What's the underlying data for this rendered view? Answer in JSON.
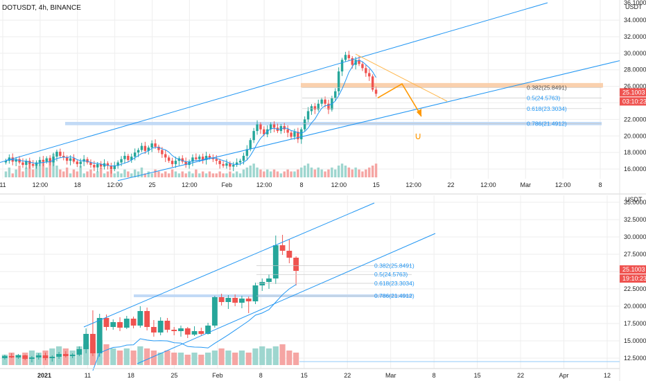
{
  "colors": {
    "up": "#26a69a",
    "down": "#ef5350",
    "vol_up": "#9ed6cf",
    "vol_down": "#f5a5a3",
    "channel": "#2196f3",
    "fib_text": "#2196f3",
    "support": "#bbd6f5",
    "resistance": "#f9c9a0",
    "projection": "#ff9800",
    "price_tag": "#ef5350",
    "grid": "#eeeeee"
  },
  "chart_data": [
    {
      "type": "candlestick",
      "title": "DOTUSDT, 4h, BINANCE",
      "currency": "USDT",
      "ylim": [
        15,
        36.1
      ],
      "y_ticks": [
        "36.1000",
        "34.0000",
        "32.0000",
        "30.0000",
        "28.0000",
        "26.0000",
        "24.0000",
        "22.0000",
        "20.0000",
        "18.0000",
        "16.0000"
      ],
      "x_ticks": [
        "11",
        "12:00",
        "18",
        "12:00",
        "25",
        "12:00",
        "Feb",
        "12:00",
        "8",
        "12:00",
        "15",
        "12:00",
        "22",
        "12:00",
        "Mar",
        "12:00",
        "8"
      ],
      "last_price": "25.1003",
      "countdown": "03:10:23",
      "fib_levels": [
        {
          "label": "0.382(25.8491)",
          "price": 25.8491
        },
        {
          "label": "0.5(24.5763)",
          "price": 24.5763
        },
        {
          "label": "0.618(23.3034)",
          "price": 23.3034
        },
        {
          "label": "0.786(21.4912)",
          "price": 21.4912
        }
      ],
      "resistance_zone": [
        25.8491,
        26.4
      ],
      "support_zone": [
        21.3,
        21.7
      ],
      "close_series": [
        17.0,
        17.4,
        16.9,
        17.2,
        16.8,
        16.5,
        17.0,
        16.6,
        16.4,
        16.8,
        17.1,
        16.9,
        17.3,
        16.8,
        17.5,
        18.1,
        17.6,
        17.4,
        17.0,
        17.3,
        16.9,
        16.6,
        16.9,
        17.2,
        16.8,
        16.5,
        16.2,
        16.6,
        16.3,
        16.7,
        16.4,
        16.0,
        16.4,
        16.8,
        17.2,
        17.6,
        17.1,
        17.5,
        18.0,
        18.3,
        18.8,
        18.2,
        18.6,
        19.1,
        18.7,
        18.3,
        17.8,
        17.4,
        17.0,
        16.6,
        17.0,
        17.3,
        16.9,
        16.5,
        16.9,
        17.4,
        17.2,
        17.5,
        17.1,
        17.6,
        17.4,
        17.2,
        17.0,
        16.6,
        16.4,
        16.7,
        16.3,
        16.5,
        16.8,
        17.0,
        17.6,
        18.4,
        19.5,
        20.6,
        21.4,
        20.8,
        20.2,
        20.8,
        21.4,
        21.0,
        20.6,
        21.2,
        20.8,
        20.4,
        19.9,
        20.5,
        19.6,
        20.8,
        22.0,
        23.0,
        23.6,
        23.2,
        23.9,
        24.4,
        23.9,
        23.2,
        24.6,
        25.4,
        27.8,
        29.2,
        29.8,
        29.4,
        28.6,
        29.2,
        28.7,
        28.2,
        27.6,
        27.2,
        25.6,
        25.1
      ],
      "volume_series": [
        3,
        5,
        2,
        4,
        6,
        3,
        5,
        7,
        4,
        6,
        8,
        9,
        5,
        10,
        12,
        6,
        4,
        3,
        5,
        2,
        4,
        3,
        6,
        2,
        3,
        4,
        2,
        3,
        5,
        2,
        3,
        4,
        2,
        3,
        2,
        4,
        3,
        2,
        4,
        3,
        5,
        2,
        3,
        2,
        4,
        3,
        2,
        3,
        2,
        4,
        3,
        2,
        3,
        2,
        3,
        2,
        4,
        2,
        3,
        2,
        3,
        2,
        2,
        3,
        2,
        2,
        3,
        2,
        3,
        2,
        4,
        5,
        6,
        7,
        5,
        4,
        3,
        4,
        3,
        4,
        3,
        2,
        3,
        4,
        3,
        3,
        4,
        5,
        6,
        7,
        5,
        4,
        5,
        4,
        3,
        4,
        5,
        4,
        6,
        7,
        6,
        5,
        4,
        5,
        4,
        3,
        4,
        5,
        6,
        7
      ]
    },
    {
      "type": "candlestick",
      "currency": "USDT",
      "ylim": [
        11.5,
        36.0
      ],
      "y_ticks": [
        "35.0000",
        "32.5000",
        "30.0000",
        "27.5000",
        "25.0000",
        "22.5000",
        "20.0000",
        "17.5000",
        "15.0000",
        "12.5000"
      ],
      "x_ticks": [
        "2021",
        "11",
        "18",
        "25",
        "Feb",
        "8",
        "15",
        "22",
        "Mar",
        "8",
        "15",
        "22",
        "Apr",
        "12"
      ],
      "last_price": "25.1003",
      "countdown": "19:10:23",
      "fib_levels": [
        {
          "label": "0.382(25.8491)",
          "price": 25.8491
        },
        {
          "label": "0.5(24.5763)",
          "price": 24.5763
        },
        {
          "label": "0.618(23.3034)",
          "price": 23.3034
        },
        {
          "label": "0.786(21.4912)",
          "price": 21.4912
        }
      ],
      "support_zone": [
        21.3,
        21.7
      ],
      "candles": [
        {
          "o": 12.5,
          "h": 13.0,
          "l": 12.3,
          "c": 12.8
        },
        {
          "o": 12.8,
          "h": 13.2,
          "l": 12.5,
          "c": 12.6
        },
        {
          "o": 12.6,
          "h": 13.1,
          "l": 12.4,
          "c": 12.9
        },
        {
          "o": 12.9,
          "h": 13.0,
          "l": 12.2,
          "c": 12.4
        },
        {
          "o": 12.4,
          "h": 12.8,
          "l": 11.9,
          "c": 12.6
        },
        {
          "o": 12.6,
          "h": 13.2,
          "l": 12.3,
          "c": 12.9
        },
        {
          "o": 12.9,
          "h": 13.3,
          "l": 12.2,
          "c": 12.5
        },
        {
          "o": 12.5,
          "h": 12.9,
          "l": 12.0,
          "c": 12.7
        },
        {
          "o": 12.7,
          "h": 13.4,
          "l": 12.4,
          "c": 13.1
        },
        {
          "o": 13.1,
          "h": 13.5,
          "l": 12.6,
          "c": 12.8
        },
        {
          "o": 12.8,
          "h": 13.2,
          "l": 12.5,
          "c": 13.0
        },
        {
          "o": 13.0,
          "h": 14.2,
          "l": 12.8,
          "c": 13.8
        },
        {
          "o": 13.8,
          "h": 16.8,
          "l": 13.2,
          "c": 16.0
        },
        {
          "o": 16.0,
          "h": 19.4,
          "l": 12.8,
          "c": 13.2
        },
        {
          "o": 13.2,
          "h": 18.9,
          "l": 12.7,
          "c": 18.3
        },
        {
          "o": 18.3,
          "h": 18.8,
          "l": 16.5,
          "c": 17.0
        },
        {
          "o": 17.0,
          "h": 18.1,
          "l": 16.6,
          "c": 17.7
        },
        {
          "o": 17.7,
          "h": 18.4,
          "l": 16.4,
          "c": 16.9
        },
        {
          "o": 16.9,
          "h": 18.6,
          "l": 16.7,
          "c": 18.2
        },
        {
          "o": 18.2,
          "h": 18.5,
          "l": 16.8,
          "c": 17.2
        },
        {
          "o": 17.2,
          "h": 20.0,
          "l": 16.9,
          "c": 19.3
        },
        {
          "o": 19.3,
          "h": 19.8,
          "l": 16.5,
          "c": 17.0
        },
        {
          "o": 17.0,
          "h": 18.0,
          "l": 15.6,
          "c": 16.2
        },
        {
          "o": 16.2,
          "h": 18.4,
          "l": 15.8,
          "c": 17.9
        },
        {
          "o": 17.9,
          "h": 18.3,
          "l": 16.2,
          "c": 16.6
        },
        {
          "o": 16.6,
          "h": 17.0,
          "l": 15.8,
          "c": 16.4
        },
        {
          "o": 16.4,
          "h": 17.2,
          "l": 15.6,
          "c": 16.8
        },
        {
          "o": 16.8,
          "h": 17.0,
          "l": 15.4,
          "c": 15.9
        },
        {
          "o": 15.9,
          "h": 17.1,
          "l": 15.7,
          "c": 16.4
        },
        {
          "o": 16.4,
          "h": 16.9,
          "l": 15.8,
          "c": 16.0
        },
        {
          "o": 16.0,
          "h": 17.6,
          "l": 15.9,
          "c": 17.2
        },
        {
          "o": 17.2,
          "h": 21.5,
          "l": 16.9,
          "c": 21.3
        },
        {
          "o": 21.3,
          "h": 21.8,
          "l": 20.1,
          "c": 20.6
        },
        {
          "o": 20.6,
          "h": 21.6,
          "l": 19.6,
          "c": 21.2
        },
        {
          "o": 21.2,
          "h": 21.7,
          "l": 20.0,
          "c": 20.5
        },
        {
          "o": 20.5,
          "h": 21.5,
          "l": 19.7,
          "c": 21.1
        },
        {
          "o": 21.1,
          "h": 21.4,
          "l": 19.0,
          "c": 20.7
        },
        {
          "o": 20.7,
          "h": 23.4,
          "l": 20.3,
          "c": 23.0
        },
        {
          "o": 23.0,
          "h": 24.0,
          "l": 22.2,
          "c": 23.5
        },
        {
          "o": 23.5,
          "h": 24.6,
          "l": 22.5,
          "c": 24.0
        },
        {
          "o": 24.0,
          "h": 30.2,
          "l": 23.2,
          "c": 28.8
        },
        {
          "o": 28.8,
          "h": 30.3,
          "l": 27.4,
          "c": 28.0
        },
        {
          "o": 28.0,
          "h": 29.6,
          "l": 26.2,
          "c": 27.0
        },
        {
          "o": 27.0,
          "h": 27.2,
          "l": 23.0,
          "c": 25.1
        }
      ],
      "volume": [
        5,
        6,
        5,
        6,
        7,
        6,
        7,
        8,
        9,
        8,
        7,
        9,
        10,
        11,
        12,
        10,
        8,
        7,
        8,
        7,
        9,
        8,
        7,
        6,
        7,
        6,
        6,
        5,
        6,
        5,
        6,
        7,
        8,
        7,
        6,
        7,
        6,
        8,
        9,
        8,
        9,
        10,
        7,
        6
      ]
    }
  ]
}
